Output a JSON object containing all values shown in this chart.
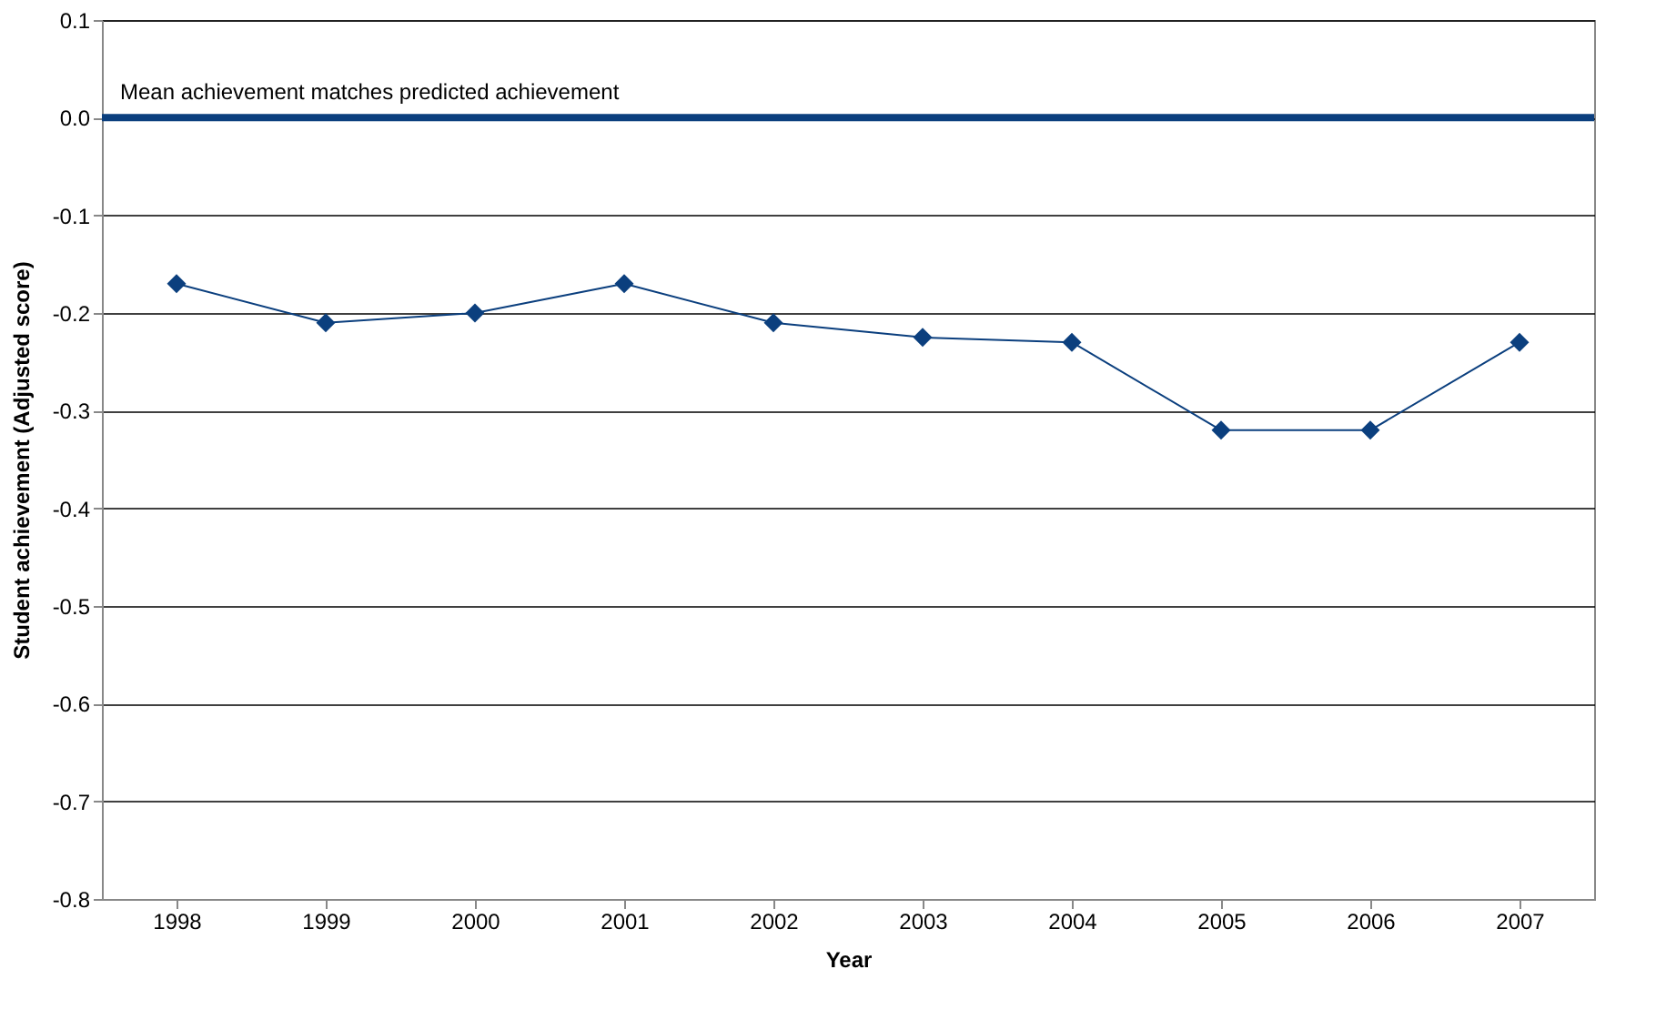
{
  "chart_data": {
    "type": "line",
    "xlabel": "Year",
    "ylabel": "Student achievement (Adjusted score)",
    "categories": [
      "1998",
      "1999",
      "2000",
      "2001",
      "2002",
      "2003",
      "2004",
      "2005",
      "2006",
      "2007"
    ],
    "series": [
      {
        "color": "#0b3f7e",
        "values": [
          -0.17,
          -0.21,
          -0.2,
          -0.17,
          -0.21,
          -0.225,
          -0.23,
          -0.32,
          -0.32,
          -0.23
        ]
      }
    ],
    "ylim": [
      -0.8,
      0.1
    ],
    "yticks": [
      -0.8,
      -0.7,
      -0.6,
      -0.5,
      -0.4,
      -0.3,
      -0.2,
      -0.1,
      {
        "value": 0,
        "label": "0.0"
      },
      0.1
    ],
    "grid": "y",
    "marker": "diamond",
    "line_style": "solid",
    "ref_lines": [
      {
        "axis": "y",
        "value": 0,
        "label": "Mean achievement matches predicted achievement",
        "color": "#0b3f7e"
      }
    ]
  }
}
